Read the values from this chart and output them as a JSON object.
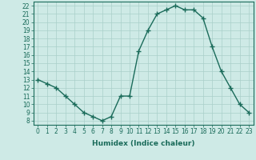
{
  "x": [
    0,
    1,
    2,
    3,
    4,
    5,
    6,
    7,
    8,
    9,
    10,
    11,
    12,
    13,
    14,
    15,
    16,
    17,
    18,
    19,
    20,
    21,
    22,
    23
  ],
  "y": [
    13,
    12.5,
    12,
    11,
    10,
    9,
    8.5,
    8,
    8.5,
    11,
    11,
    16.5,
    19,
    21,
    21.5,
    22,
    21.5,
    21.5,
    20.5,
    17,
    14,
    12,
    10,
    9
  ],
  "line_color": "#1a6b5a",
  "marker": "+",
  "marker_size": 4,
  "bg_color": "#ceeae6",
  "grid_color": "#aacfca",
  "xlabel": "Humidex (Indice chaleur)",
  "ylim": [
    7.5,
    22.5
  ],
  "xlim": [
    -0.5,
    23.5
  ],
  "yticks": [
    8,
    9,
    10,
    11,
    12,
    13,
    14,
    15,
    16,
    17,
    18,
    19,
    20,
    21,
    22
  ],
  "xticks": [
    0,
    1,
    2,
    3,
    4,
    5,
    6,
    7,
    8,
    9,
    10,
    11,
    12,
    13,
    14,
    15,
    16,
    17,
    18,
    19,
    20,
    21,
    22,
    23
  ],
  "tick_label_size": 5.5,
  "xlabel_size": 6.5,
  "tick_color": "#1a6b5a",
  "spine_color": "#1a6b5a",
  "linewidth": 1.0
}
